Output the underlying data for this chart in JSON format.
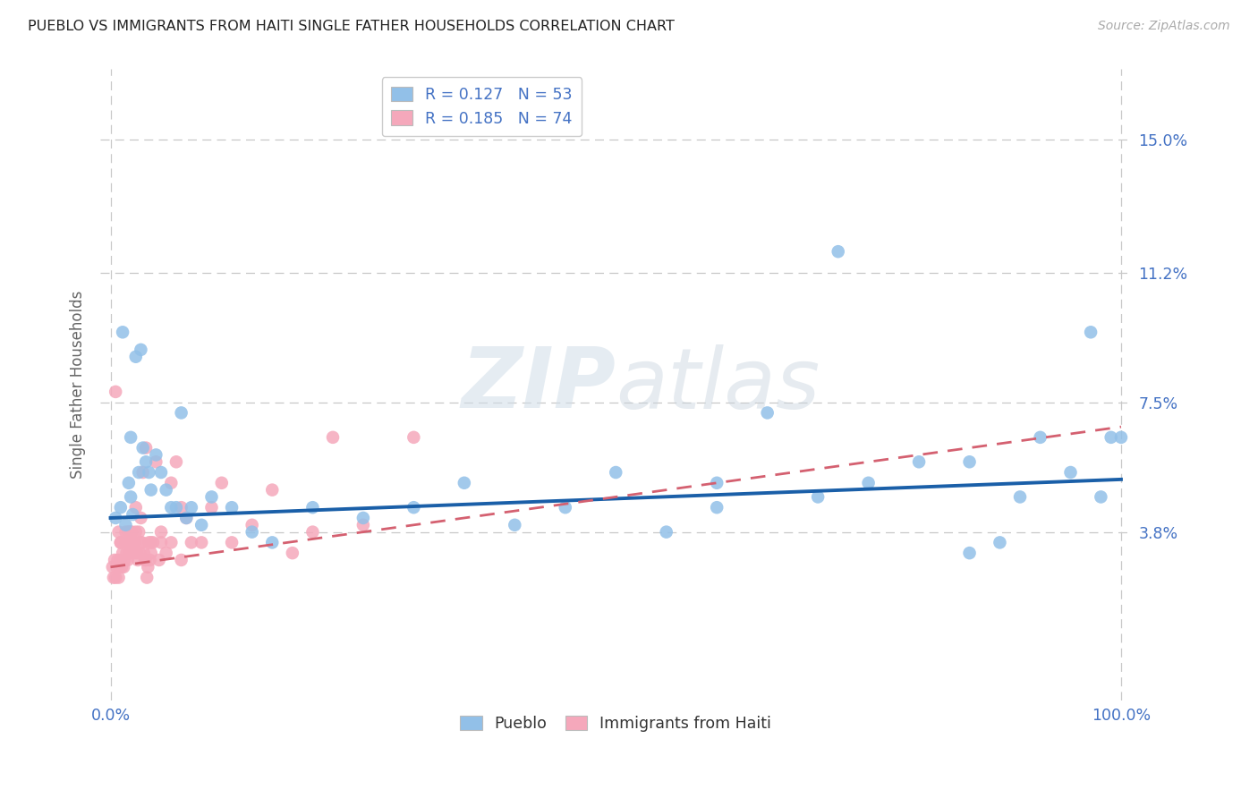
{
  "title": "PUEBLO VS IMMIGRANTS FROM HAITI SINGLE FATHER HOUSEHOLDS CORRELATION CHART",
  "source": "Source: ZipAtlas.com",
  "ylabel": "Single Father Households",
  "legend_r1": "R = 0.127",
  "legend_n1": "N = 53",
  "legend_r2": "R = 0.185",
  "legend_n2": "N = 74",
  "blue_color": "#92c0e8",
  "pink_color": "#f5a8bb",
  "blue_line_color": "#1a5fa8",
  "pink_line_color": "#d46070",
  "tick_color": "#4472c4",
  "grid_color": "#c8c8c8",
  "watermark_color": "#d0dde8",
  "yticks": [
    3.8,
    7.5,
    11.2,
    15.0
  ],
  "ylim": [
    -1.0,
    17.0
  ],
  "xlim": [
    -1.0,
    101.0
  ],
  "pueblo_x": [
    0.5,
    1.0,
    1.2,
    1.5,
    1.8,
    2.0,
    2.0,
    2.2,
    2.5,
    2.8,
    3.0,
    3.2,
    3.5,
    3.8,
    4.0,
    4.5,
    5.0,
    5.5,
    6.0,
    6.5,
    7.0,
    7.5,
    8.0,
    9.0,
    10.0,
    12.0,
    14.0,
    16.0,
    20.0,
    25.0,
    30.0,
    35.0,
    40.0,
    45.0,
    50.0,
    55.0,
    60.0,
    65.0,
    70.0,
    72.0,
    75.0,
    80.0,
    85.0,
    88.0,
    90.0,
    92.0,
    95.0,
    97.0,
    98.0,
    99.0,
    100.0,
    60.0,
    85.0
  ],
  "pueblo_y": [
    4.2,
    4.5,
    9.5,
    4.0,
    5.2,
    6.5,
    4.8,
    4.3,
    8.8,
    5.5,
    9.0,
    6.2,
    5.8,
    5.5,
    5.0,
    6.0,
    5.5,
    5.0,
    4.5,
    4.5,
    7.2,
    4.2,
    4.5,
    4.0,
    4.8,
    4.5,
    3.8,
    3.5,
    4.5,
    4.2,
    4.5,
    5.2,
    4.0,
    4.5,
    5.5,
    3.8,
    5.2,
    7.2,
    4.8,
    11.8,
    5.2,
    5.8,
    5.8,
    3.5,
    4.8,
    6.5,
    5.5,
    9.5,
    4.8,
    6.5,
    6.5,
    4.5,
    3.2
  ],
  "haiti_x": [
    0.2,
    0.3,
    0.4,
    0.5,
    0.6,
    0.7,
    0.8,
    0.9,
    1.0,
    1.0,
    1.1,
    1.2,
    1.3,
    1.4,
    1.5,
    1.6,
    1.7,
    1.8,
    1.9,
    2.0,
    2.1,
    2.2,
    2.3,
    2.4,
    2.5,
    2.6,
    2.7,
    2.8,
    2.9,
    3.0,
    3.1,
    3.2,
    3.3,
    3.4,
    3.5,
    3.6,
    3.7,
    3.8,
    3.9,
    4.0,
    4.2,
    4.5,
    4.8,
    5.0,
    5.5,
    6.0,
    6.5,
    7.0,
    7.5,
    8.0,
    9.0,
    10.0,
    11.0,
    12.0,
    14.0,
    16.0,
    18.0,
    20.0,
    22.0,
    25.0,
    0.5,
    1.0,
    1.5,
    2.0,
    2.5,
    3.0,
    3.5,
    4.0,
    5.0,
    6.0,
    7.0,
    0.8,
    1.8,
    30.0
  ],
  "haiti_y": [
    2.8,
    2.5,
    3.0,
    2.5,
    2.8,
    3.0,
    2.5,
    2.8,
    3.0,
    3.5,
    2.8,
    3.2,
    2.8,
    3.0,
    3.5,
    3.2,
    3.0,
    3.8,
    3.2,
    3.5,
    3.8,
    3.5,
    3.2,
    3.5,
    3.8,
    3.2,
    3.0,
    3.8,
    3.2,
    4.2,
    3.5,
    5.5,
    3.2,
    3.0,
    3.0,
    2.5,
    2.8,
    3.5,
    3.0,
    3.2,
    3.5,
    5.8,
    3.0,
    3.5,
    3.2,
    3.5,
    5.8,
    4.5,
    4.2,
    3.5,
    3.5,
    4.5,
    5.2,
    3.5,
    4.0,
    5.0,
    3.2,
    3.8,
    6.5,
    4.0,
    7.8,
    3.5,
    3.8,
    3.8,
    4.5,
    3.5,
    6.2,
    3.5,
    3.8,
    5.2,
    3.0,
    3.8,
    3.8,
    6.5
  ],
  "blue_line_x": [
    0,
    100
  ],
  "blue_line_y": [
    4.2,
    5.3
  ],
  "pink_line_x": [
    0,
    100
  ],
  "pink_line_y": [
    2.8,
    6.8
  ]
}
